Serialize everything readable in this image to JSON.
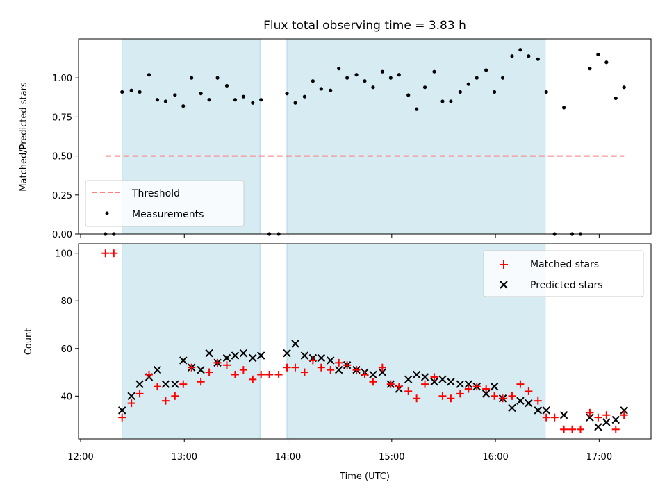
{
  "chart_data": [
    {
      "type": "scatter",
      "title": "Flux total observing time = 3.83 h",
      "xlabel": "",
      "ylabel": "Matched/Predicted stars",
      "ylim": [
        0,
        1.25
      ],
      "yticks": [
        "0.00",
        "0.25",
        "0.50",
        "0.75",
        "1.00"
      ],
      "ytick_values": [
        0,
        0.25,
        0.5,
        0.75,
        1.0
      ],
      "xlim_hours": [
        11.98,
        17.5
      ],
      "shaded_intervals_hours": [
        [
          12.4,
          13.73
        ],
        [
          13.99,
          16.48
        ]
      ],
      "shade_color": "#add8e6",
      "legend_position": "lower-left",
      "threshold": {
        "name": "Threshold",
        "value": 0.5,
        "x_range_hours": [
          12.24,
          17.24
        ],
        "color": "#ff7f7f"
      },
      "series": [
        {
          "name": "Measurements",
          "color": "#000000",
          "x_hours": [
            12.24,
            12.32,
            12.4,
            12.49,
            12.57,
            12.66,
            12.74,
            12.82,
            12.91,
            12.99,
            13.07,
            13.16,
            13.24,
            13.32,
            13.41,
            13.49,
            13.57,
            13.66,
            13.74,
            13.82,
            13.91,
            13.99,
            14.07,
            14.16,
            14.24,
            14.32,
            14.41,
            14.49,
            14.57,
            14.66,
            14.74,
            14.82,
            14.91,
            14.99,
            15.07,
            15.16,
            15.24,
            15.32,
            15.41,
            15.49,
            15.57,
            15.66,
            15.74,
            15.82,
            15.91,
            15.99,
            16.07,
            16.16,
            16.24,
            16.32,
            16.41,
            16.49,
            16.57,
            16.66,
            16.74,
            16.82,
            16.91,
            16.99,
            17.07,
            17.16,
            17.24
          ],
          "y": [
            0.0,
            0.0,
            0.91,
            0.92,
            0.91,
            1.02,
            0.86,
            0.85,
            0.89,
            0.82,
            1.0,
            0.9,
            0.86,
            1.0,
            0.95,
            0.86,
            0.88,
            0.84,
            0.86,
            0.0,
            0.0,
            0.9,
            0.84,
            0.88,
            0.98,
            0.93,
            0.92,
            1.06,
            1.0,
            1.02,
            0.98,
            0.94,
            1.04,
            1.0,
            1.02,
            0.89,
            0.8,
            0.94,
            1.04,
            0.85,
            0.85,
            0.91,
            0.96,
            1.0,
            1.05,
            0.91,
            1.0,
            1.14,
            1.18,
            1.14,
            1.12,
            0.91,
            0.0,
            0.81,
            0.0,
            0.0,
            1.06,
            1.15,
            1.1,
            0.87,
            0.94
          ]
        }
      ]
    },
    {
      "type": "scatter",
      "xlabel": "Time (UTC)",
      "ylabel": "Count",
      "ylim": [
        22,
        104
      ],
      "yticks": [
        "40",
        "60",
        "80",
        "100"
      ],
      "ytick_values": [
        40,
        60,
        80,
        100
      ],
      "xticks": [
        "12:00",
        "13:00",
        "14:00",
        "15:00",
        "16:00",
        "17:00"
      ],
      "xtick_hours": [
        12,
        13,
        14,
        15,
        16,
        17
      ],
      "xlim_hours": [
        11.98,
        17.5
      ],
      "shaded_intervals_hours": [
        [
          12.4,
          13.73
        ],
        [
          13.99,
          16.48
        ]
      ],
      "shade_color": "#add8e6",
      "legend_position": "upper-right",
      "series": [
        {
          "name": "Matched stars",
          "marker": "+",
          "color": "#ff0000",
          "x_hours": [
            12.24,
            12.32,
            12.4,
            12.49,
            12.57,
            12.66,
            12.74,
            12.82,
            12.91,
            12.99,
            13.07,
            13.16,
            13.24,
            13.32,
            13.41,
            13.49,
            13.57,
            13.66,
            13.74,
            13.82,
            13.91,
            13.99,
            14.07,
            14.16,
            14.24,
            14.32,
            14.41,
            14.49,
            14.57,
            14.66,
            14.74,
            14.82,
            14.91,
            14.99,
            15.07,
            15.16,
            15.24,
            15.32,
            15.41,
            15.49,
            15.57,
            15.66,
            15.74,
            15.82,
            15.91,
            15.99,
            16.07,
            16.16,
            16.24,
            16.32,
            16.41,
            16.49,
            16.57,
            16.66,
            16.74,
            16.82,
            16.91,
            16.99,
            17.07,
            17.16,
            17.24
          ],
          "y": [
            100,
            100,
            31,
            37,
            41,
            49,
            44,
            38,
            40,
            45,
            52,
            46,
            50,
            54,
            53,
            49,
            51,
            47,
            49,
            49,
            49,
            52,
            52,
            50,
            55,
            52,
            51,
            54,
            53,
            51,
            49,
            46,
            52,
            45,
            44,
            42,
            39,
            45,
            48,
            40,
            39,
            41,
            43,
            44,
            43,
            40,
            39,
            40,
            45,
            42,
            38,
            31,
            31,
            26,
            26,
            26,
            33,
            31,
            32,
            26,
            32
          ]
        },
        {
          "name": "Predicted stars",
          "marker": "x",
          "color": "#000000",
          "x_hours": [
            12.4,
            12.49,
            12.57,
            12.66,
            12.74,
            12.82,
            12.91,
            12.99,
            13.07,
            13.16,
            13.24,
            13.32,
            13.41,
            13.49,
            13.57,
            13.66,
            13.74,
            13.99,
            14.07,
            14.16,
            14.24,
            14.32,
            14.41,
            14.49,
            14.57,
            14.66,
            14.74,
            14.82,
            14.91,
            14.99,
            15.07,
            15.16,
            15.24,
            15.32,
            15.41,
            15.49,
            15.57,
            15.66,
            15.74,
            15.82,
            15.91,
            15.99,
            16.07,
            16.16,
            16.24,
            16.32,
            16.41,
            16.49,
            16.66,
            16.91,
            16.99,
            17.07,
            17.16,
            17.24
          ],
          "y": [
            34,
            40,
            45,
            48,
            51,
            45,
            45,
            55,
            52,
            51,
            58,
            54,
            56,
            57,
            58,
            56,
            57,
            58,
            62,
            57,
            56,
            56,
            55,
            51,
            53,
            51,
            50,
            49,
            50,
            45,
            43,
            47,
            49,
            48,
            46,
            47,
            46,
            45,
            45,
            44,
            41,
            44,
            39,
            35,
            38,
            37,
            34,
            34,
            32,
            31,
            27,
            29,
            30,
            34
          ]
        }
      ]
    }
  ]
}
